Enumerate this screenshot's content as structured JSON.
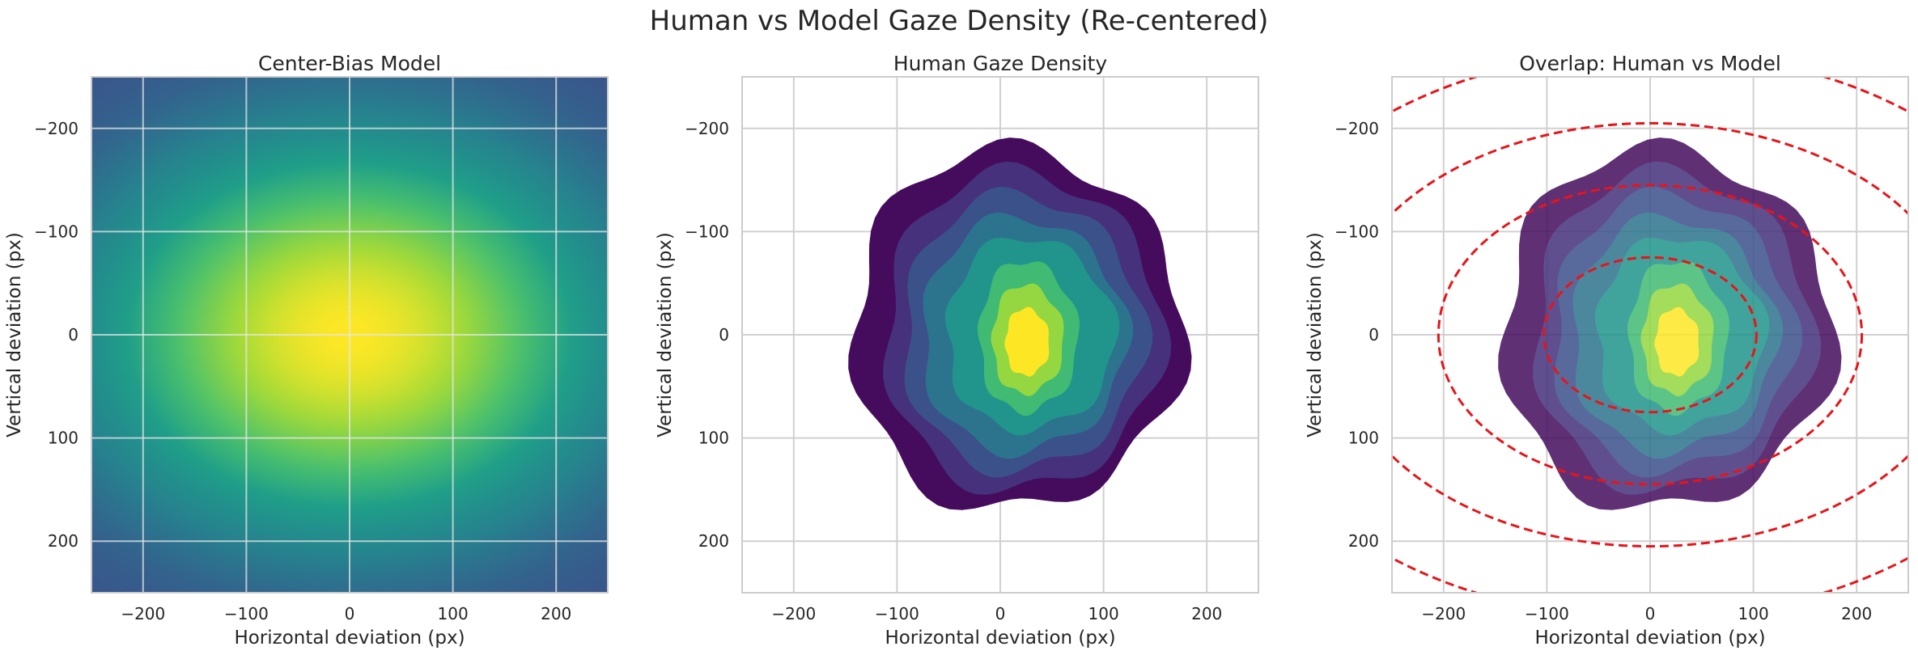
{
  "figure": {
    "title": "Human vs Model Gaze Density (Re-centered)"
  },
  "chart_data": [
    {
      "type": "heatmap",
      "title": "Center-Bias Model",
      "xlabel": "Horizontal deviation (px)",
      "ylabel": "Vertical deviation (px)",
      "xlim": [
        -250,
        250
      ],
      "ylim": [
        250,
        -250
      ],
      "xticks": [
        -200,
        -100,
        0,
        100,
        200
      ],
      "yticks": [
        -200,
        -100,
        0,
        100,
        200
      ],
      "xtick_labels": [
        "−200",
        "−100",
        "0",
        "100",
        "200"
      ],
      "ytick_labels": [
        "−200",
        "−100",
        "0",
        "100",
        "200"
      ],
      "grid": true,
      "colormap": "viridis",
      "center": [
        0,
        0
      ],
      "sigma": [
        180,
        140
      ]
    },
    {
      "type": "heatmap",
      "title": "Human Gaze Density",
      "xlabel": "Horizontal deviation (px)",
      "ylabel": "Vertical deviation (px)",
      "xlim": [
        -250,
        250
      ],
      "ylim": [
        250,
        -250
      ],
      "xticks": [
        -200,
        -100,
        0,
        100,
        200
      ],
      "yticks": [
        -200,
        -100,
        0,
        100,
        200
      ],
      "xtick_labels": [
        "−200",
        "−100",
        "0",
        "100",
        "200"
      ],
      "ytick_labels": [
        "−200",
        "−100",
        "0",
        "100",
        "200"
      ],
      "grid": true,
      "colormap": "viridis",
      "contour_levels": [
        0.05,
        0.15,
        0.28,
        0.42,
        0.56,
        0.7,
        0.84
      ],
      "peak": [
        20,
        10
      ],
      "rough_extent": {
        "x": [
          -145,
          175
        ],
        "y": [
          -180,
          170
        ]
      }
    },
    {
      "type": "heatmap",
      "title": "Overlap: Human vs Model",
      "xlabel": "Horizontal deviation (px)",
      "ylabel": "Vertical deviation (px)",
      "xlim": [
        -250,
        250
      ],
      "ylim": [
        250,
        -250
      ],
      "xticks": [
        -200,
        -100,
        0,
        100,
        200
      ],
      "yticks": [
        -200,
        -100,
        0,
        100,
        200
      ],
      "xtick_labels": [
        "−200",
        "−100",
        "0",
        "100",
        "200"
      ],
      "ytick_labels": [
        "−200",
        "−100",
        "0",
        "100",
        "200"
      ],
      "grid": true,
      "colormap": "viridis",
      "model_contours": {
        "color": "#e8141a",
        "style": "dashed",
        "radii": [
          {
            "rx": 103,
            "ry": 75
          },
          {
            "rx": 205,
            "ry": 145
          },
          {
            "rx": 305,
            "ry": 205
          },
          {
            "rx": 405,
            "ry": 275
          }
        ]
      }
    }
  ],
  "colors": {
    "grid": "#d0d0d0",
    "spine": "#cccccc",
    "text": "#262626",
    "model_contour": "#e8141a"
  }
}
